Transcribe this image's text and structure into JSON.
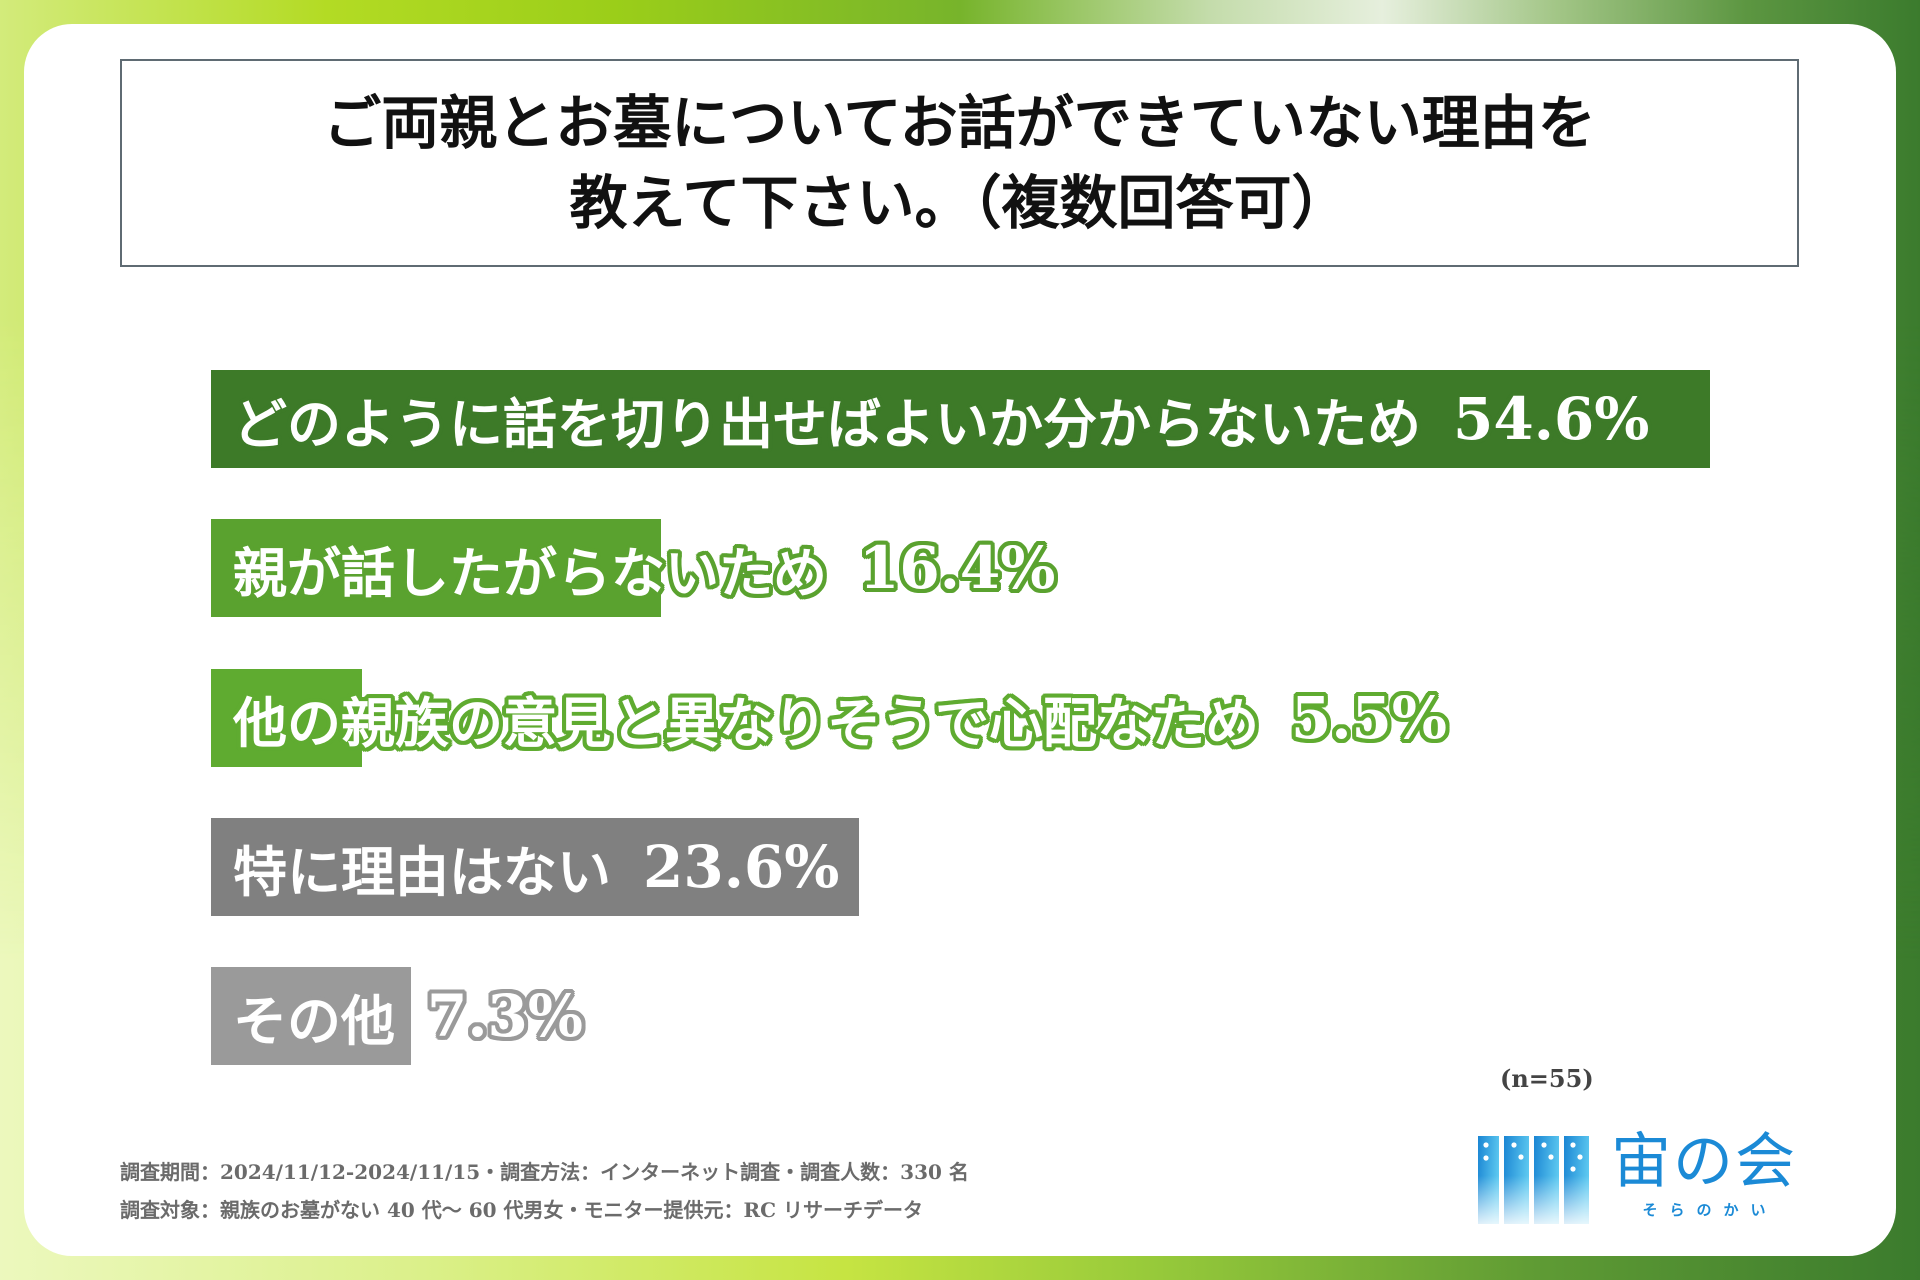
{
  "chart_data": {
    "type": "bar",
    "orientation": "horizontal",
    "title": "ご両親とお墓についてお話ができていない理由を\n教えて下さい。（複数回答可）",
    "categories": [
      "どのように話を切り出せばよいか分からないため",
      "親が話したがらないため",
      "他の親族の意見と異なりそうで心配なため",
      "特に理由はない",
      "その他"
    ],
    "values": [
      54.6,
      16.4,
      5.5,
      23.6,
      7.3
    ],
    "value_labels": [
      "54.6%",
      "16.4%",
      "5.5%",
      "23.6%",
      "7.3%"
    ],
    "colors": [
      "#3d7a28",
      "#5aa22f",
      "#5fab30",
      "#808080",
      "#9a9a9a"
    ],
    "annotation": "(n=55)",
    "grid": false,
    "legend": "none"
  },
  "footer": {
    "survey_info": "調査期間：2024/11/12-2024/11/15・調査方法：インターネット調査・調査人数：330 名",
    "survey_target": "調査対象：親族のお墓がない 40 代～ 60 代男女・モニター提供元：RC リサーチデータ"
  },
  "logo": {
    "name": "宙の会",
    "reading": "そらのかい",
    "color": "#1b8ad6",
    "icon": "logo-icon"
  }
}
